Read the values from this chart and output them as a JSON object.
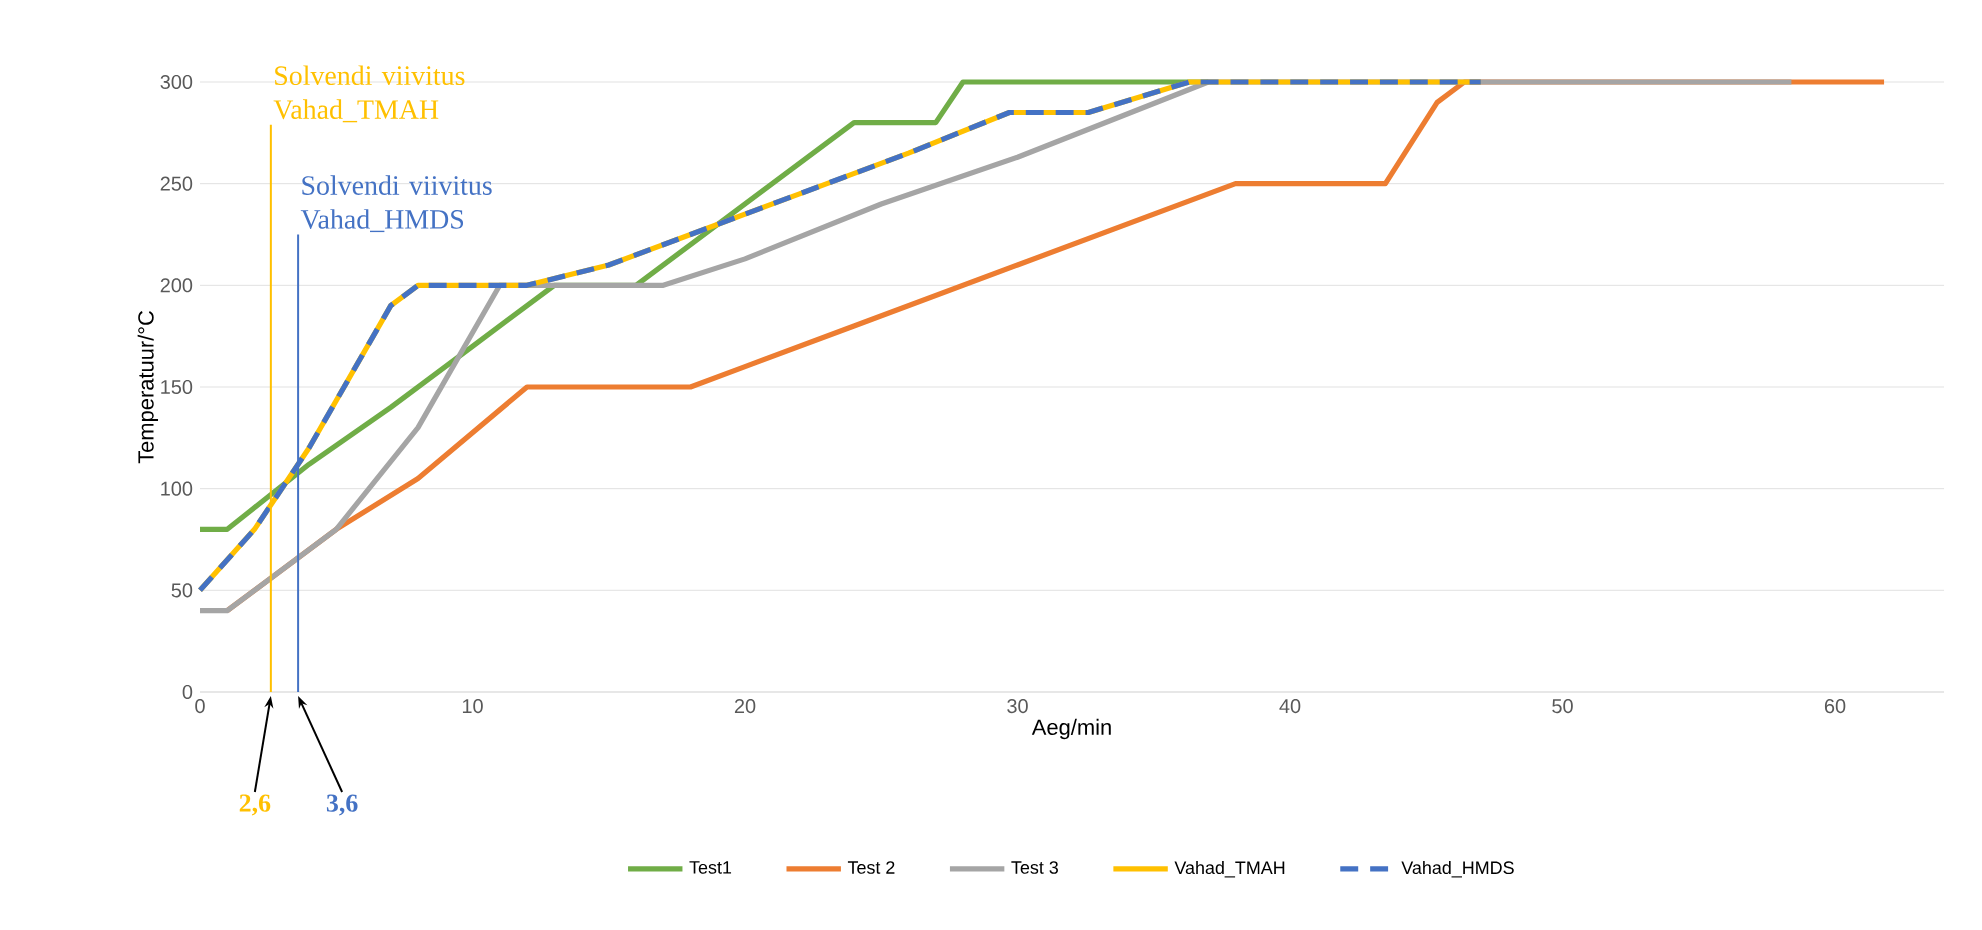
{
  "chart_data": {
    "type": "line",
    "xlabel": "Aeg/min",
    "ylabel": "Temperatuur/°C",
    "xlim": [
      0,
      64
    ],
    "ylim": [
      0,
      300
    ],
    "xticks": [
      0,
      10,
      20,
      30,
      40,
      50,
      60
    ],
    "yticks": [
      0,
      50,
      100,
      150,
      200,
      250,
      300
    ],
    "grid": "y",
    "legend": "bottom",
    "marker": "none",
    "series": [
      {
        "name": "Test1",
        "color": "#70ad47",
        "line_style": "solid",
        "x": [
          0,
          1,
          4,
          7,
          10,
          13,
          16,
          24,
          27,
          28,
          37
        ],
        "values": [
          80,
          80,
          112,
          140,
          170,
          200,
          200,
          280,
          280,
          300,
          300
        ]
      },
      {
        "name": "Test 2",
        "color": "#ed7d31",
        "line_style": "solid",
        "x": [
          1,
          5,
          8,
          12,
          18,
          20,
          24,
          30,
          38,
          43.5,
          45.4,
          46.4,
          61.8
        ],
        "values": [
          40,
          80,
          105,
          150,
          150,
          160,
          180,
          210,
          250,
          250,
          290,
          300,
          300
        ]
      },
      {
        "name": "Test 3",
        "color": "#a5a5a5",
        "line_style": "solid",
        "x": [
          0,
          1,
          5,
          8,
          11,
          17,
          20,
          25,
          30,
          37,
          58.4
        ],
        "values": [
          40,
          40,
          80,
          130,
          200,
          200,
          213,
          240,
          263,
          300,
          300
        ]
      },
      {
        "name": "Vahad_TMAH",
        "color": "#ffc000",
        "line_style": "solid",
        "x": [
          0,
          2,
          4,
          7,
          8,
          12,
          15,
          18,
          22,
          26,
          29.7,
          32.6,
          36.3,
          47
        ],
        "values": [
          50,
          80,
          120,
          190,
          200,
          200,
          210,
          225,
          245,
          265,
          285,
          285,
          300,
          300
        ]
      },
      {
        "name": "Vahad_HMDS",
        "color": "#4472c4",
        "line_style": "dashed",
        "x": [
          0,
          2,
          4,
          7,
          8,
          12,
          15,
          18,
          22,
          26,
          29.7,
          32.6,
          36.3,
          47
        ],
        "values": [
          50,
          80,
          120,
          190,
          200,
          200,
          210,
          225,
          245,
          265,
          285,
          285,
          300,
          300
        ]
      }
    ],
    "ref_lines": [
      {
        "axis": "x",
        "value": 2.6,
        "label": "Solvendi viivitus Vahad_TMAH",
        "color": "#ffc000"
      },
      {
        "axis": "x",
        "value": 3.6,
        "label": "Solvendi viivitus Vahad_HMDS",
        "color": "#4472c4"
      }
    ],
    "annotations": [
      {
        "text": "2,6",
        "x": 2.6,
        "y": 0
      },
      {
        "text": "3,6",
        "x": 3.6,
        "y": 0
      }
    ]
  }
}
